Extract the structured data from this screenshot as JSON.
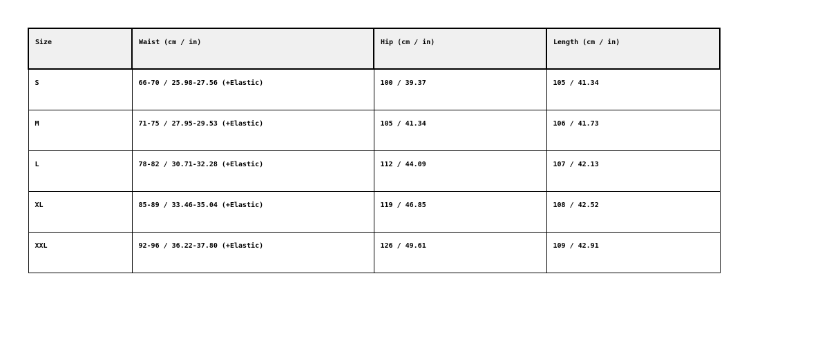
{
  "table": {
    "header": [
      "Size",
      "Waist (cm / in)",
      "Hip (cm / in)",
      "Length (cm / in)"
    ],
    "rows": [
      [
        "S",
        "66-70 / 25.98-27.56 (+Elastic)",
        "100 / 39.37",
        "105 / 41.34"
      ],
      [
        "M",
        "71-75 / 27.95-29.53 (+Elastic)",
        "105 / 41.34",
        "106 / 41.73"
      ],
      [
        "L",
        "78-82 / 30.71-32.28 (+Elastic)",
        "112 / 44.09",
        "107 / 42.13"
      ],
      [
        "XL",
        "85-89 / 33.46-35.04 (+Elastic)",
        "119 / 46.85",
        "108 / 42.52"
      ],
      [
        "XXL",
        "92-96 / 36.22-37.80 (+Elastic)",
        "126 / 49.61",
        "109 / 42.91"
      ]
    ]
  }
}
